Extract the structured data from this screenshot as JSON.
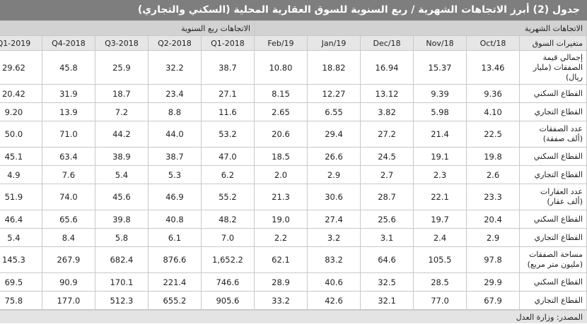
{
  "title": "جدول (2) أبرز الاتجاهات الشهرية / ربع السنوية للسوق العقارية المحلية (السكني والتجاري)",
  "groups": {
    "monthly": "الاتجاهات الشهرية",
    "quarterly": "الاتجاهات ربع السنوية"
  },
  "columns": {
    "label": "متغيرات السوق",
    "months": [
      "Oct/18",
      "Nov/18",
      "Dec/18",
      "Jan/19",
      "Feb/19"
    ],
    "quarters": [
      "2018-Q1",
      "2018-Q2",
      "2018-Q3",
      "2018-Q4",
      "2019-Q1"
    ]
  },
  "rows": [
    {
      "label": "إجمالي قيمة الصفقات (مليار ريال)",
      "months": [
        "13.46",
        "15.37",
        "16.94",
        "18.82",
        "10.80"
      ],
      "quarters": [
        "38.7",
        "32.2",
        "25.9",
        "45.8",
        "29.62"
      ]
    },
    {
      "label": "القطاع السكني",
      "months": [
        "9.36",
        "9.39",
        "13.12",
        "12.27",
        "8.15"
      ],
      "quarters": [
        "27.1",
        "23.4",
        "18.7",
        "31.9",
        "20.42"
      ]
    },
    {
      "label": "القطاع التجاري",
      "months": [
        "4.10",
        "5.98",
        "3.82",
        "6.55",
        "2.65"
      ],
      "quarters": [
        "11.6",
        "8.8",
        "7.2",
        "13.9",
        "9.20"
      ]
    },
    {
      "label": "عدد الصفقات (ألف صفقة)",
      "months": [
        "22.5",
        "21.4",
        "27.2",
        "29.4",
        "20.6"
      ],
      "quarters": [
        "53.2",
        "44.0",
        "44.2",
        "71.0",
        "50.0"
      ]
    },
    {
      "label": "القطاع السكني",
      "months": [
        "19.8",
        "19.1",
        "24.5",
        "26.6",
        "18.5"
      ],
      "quarters": [
        "47.0",
        "38.7",
        "38.9",
        "63.4",
        "45.1"
      ]
    },
    {
      "label": "القطاع التجاري",
      "months": [
        "2.6",
        "2.3",
        "2.7",
        "2.9",
        "2.0"
      ],
      "quarters": [
        "6.2",
        "5.3",
        "5.4",
        "7.6",
        "4.9"
      ]
    },
    {
      "label": "عدد العقارات (ألف عقار)",
      "months": [
        "23.3",
        "22.1",
        "28.7",
        "30.6",
        "21.3"
      ],
      "quarters": [
        "55.2",
        "46.9",
        "45.6",
        "74.0",
        "51.9"
      ]
    },
    {
      "label": "القطاع السكني",
      "months": [
        "20.4",
        "19.7",
        "25.6",
        "27.4",
        "19.0"
      ],
      "quarters": [
        "48.2",
        "40.8",
        "39.8",
        "65.6",
        "46.4"
      ]
    },
    {
      "label": "القطاع التجاري",
      "months": [
        "2.9",
        "2.4",
        "3.1",
        "3.2",
        "2.2"
      ],
      "quarters": [
        "7.0",
        "6.1",
        "5.8",
        "8.4",
        "5.4"
      ]
    },
    {
      "label": "مساحة الصفقات (مليون متر مربع)",
      "months": [
        "97.8",
        "105.5",
        "64.6",
        "83.2",
        "62.1"
      ],
      "quarters": [
        "1,652.2",
        "876.6",
        "682.4",
        "267.9",
        "145.3"
      ]
    },
    {
      "label": "القطاع السكني",
      "months": [
        "29.9",
        "28.5",
        "32.5",
        "40.6",
        "28.9"
      ],
      "quarters": [
        "746.6",
        "221.4",
        "170.1",
        "90.9",
        "69.5"
      ]
    },
    {
      "label": "القطاع التجاري",
      "months": [
        "67.9",
        "77.0",
        "32.1",
        "42.6",
        "33.2"
      ],
      "quarters": [
        "905.6",
        "655.2",
        "512.3",
        "177.0",
        "75.8"
      ]
    }
  ],
  "source": "المصدر: وزارة العدل"
}
